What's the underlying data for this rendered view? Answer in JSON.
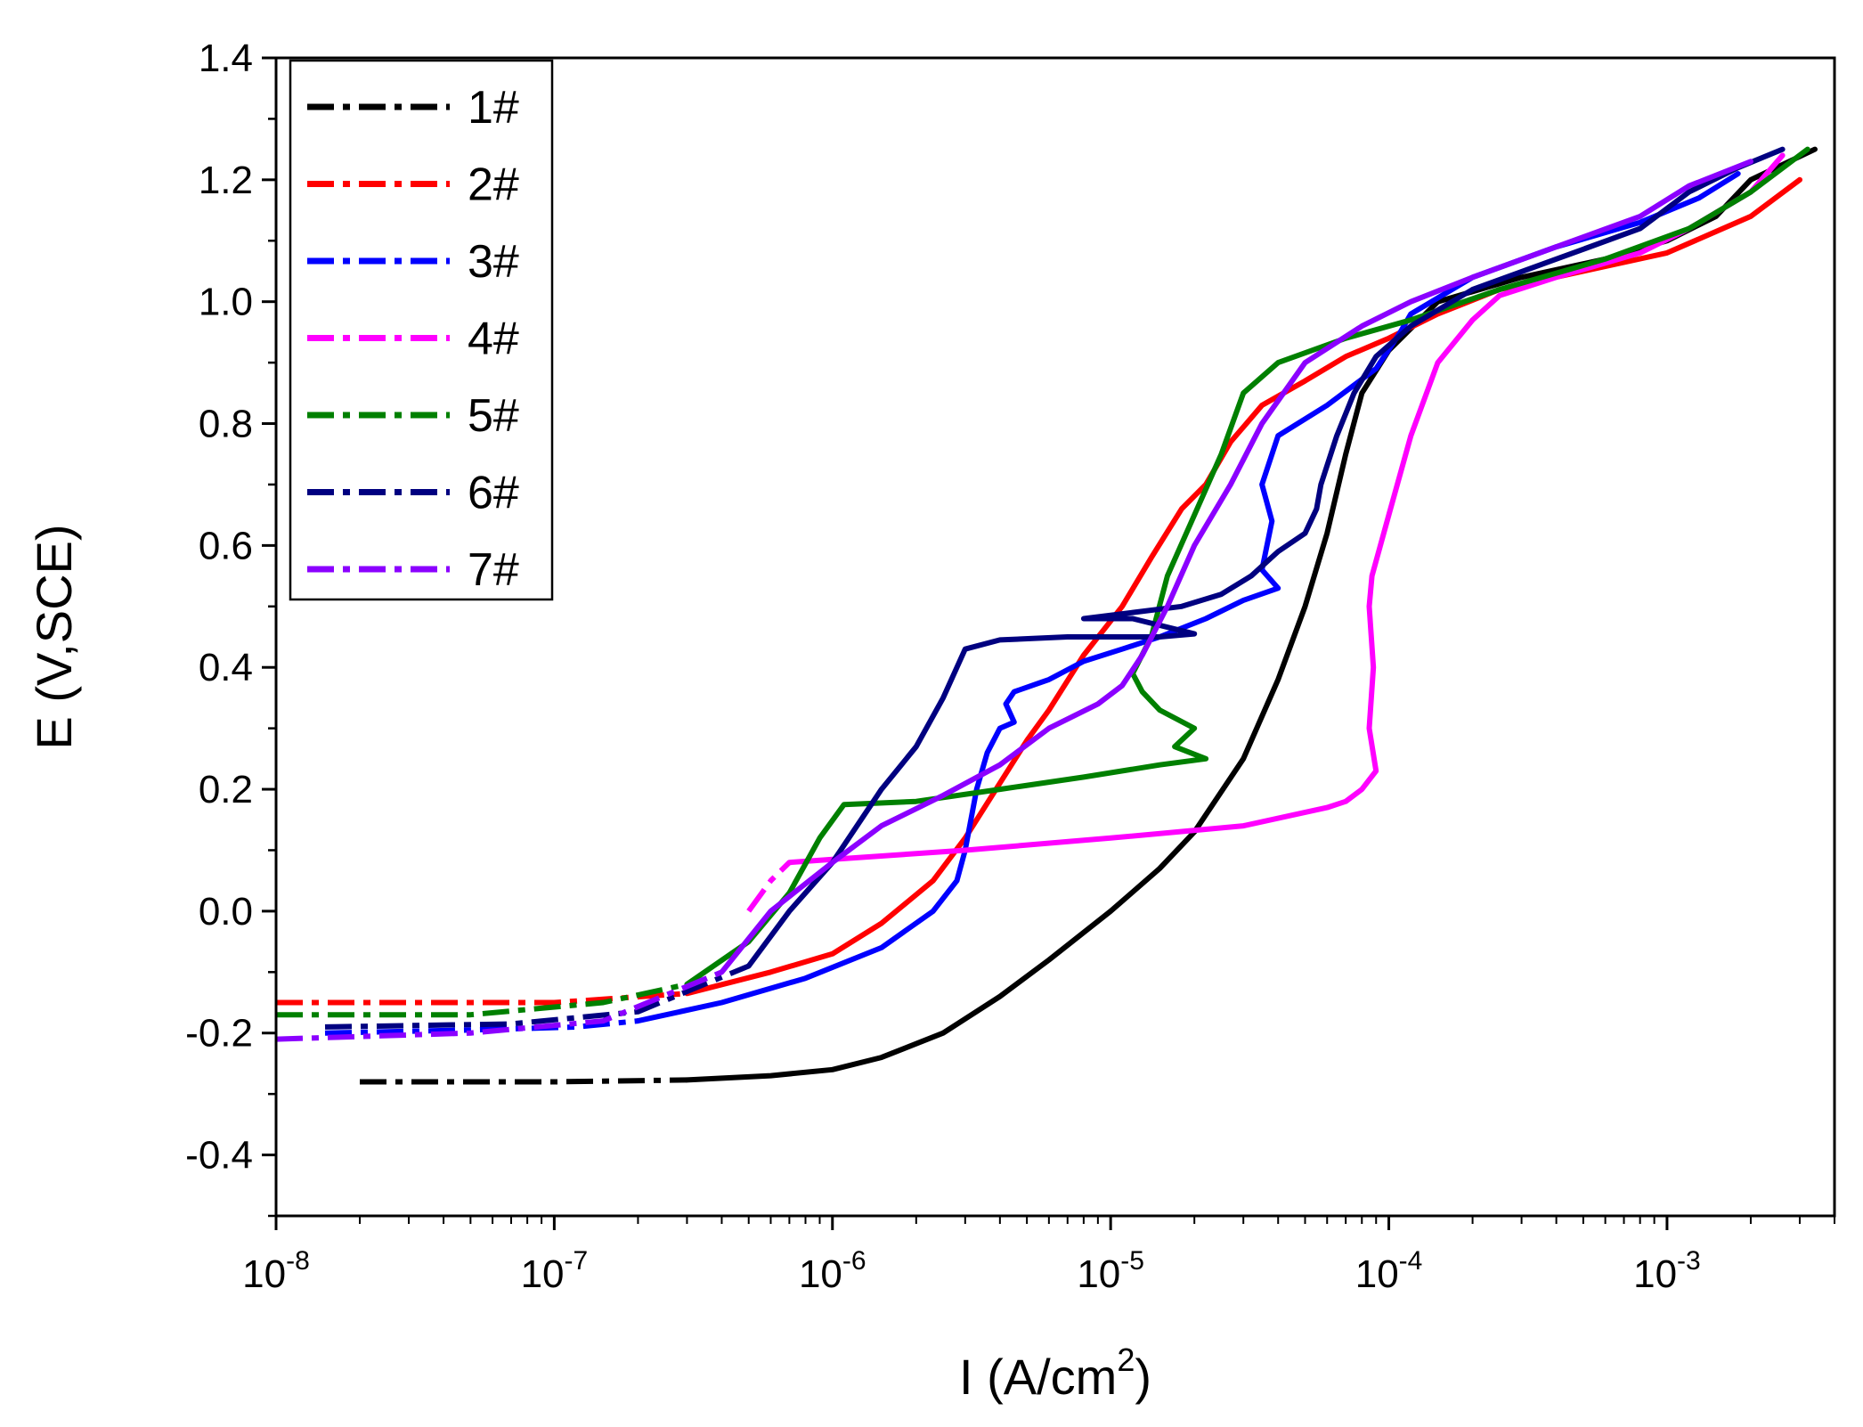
{
  "chart_data": {
    "type": "line",
    "xlabel": "I (A/cm",
    "xlabel_sup": "2",
    "xlabel_close": ")",
    "ylabel": "E (V,SCE)",
    "x_scale": "log",
    "xlim": [
      1e-08,
      0.004
    ],
    "ylim": [
      -0.5,
      1.4
    ],
    "x_ticks": [
      {
        "value": 1e-08,
        "base": "10",
        "exp": "-8"
      },
      {
        "value": 1e-07,
        "base": "10",
        "exp": "-7"
      },
      {
        "value": 1e-06,
        "base": "10",
        "exp": "-6"
      },
      {
        "value": 1e-05,
        "base": "10",
        "exp": "-5"
      },
      {
        "value": 0.0001,
        "base": "10",
        "exp": "-4"
      },
      {
        "value": 0.001,
        "base": "10",
        "exp": "-3"
      }
    ],
    "y_ticks": [
      {
        "value": 1.4,
        "label": "1.4"
      },
      {
        "value": 1.2,
        "label": "1.2"
      },
      {
        "value": 1.0,
        "label": "1.0"
      },
      {
        "value": 0.8,
        "label": "0.8"
      },
      {
        "value": 0.6,
        "label": "0.6"
      },
      {
        "value": 0.4,
        "label": "0.4"
      },
      {
        "value": 0.2,
        "label": "0.2"
      },
      {
        "value": 0.0,
        "label": "0.0"
      },
      {
        "value": -0.2,
        "label": "-0.2"
      },
      {
        "value": -0.4,
        "label": "-0.4"
      }
    ],
    "grid": false,
    "legend": {
      "position": "top-left",
      "style": "dash-dot"
    },
    "series": [
      {
        "name": "1#",
        "color": "#000000",
        "cathodic": [
          [
            2e-08,
            -0.28
          ],
          [
            1e-07,
            -0.28
          ],
          [
            3e-07,
            -0.277
          ]
        ],
        "anodic": [
          [
            3e-07,
            -0.277
          ],
          [
            6e-07,
            -0.27
          ],
          [
            1e-06,
            -0.26
          ],
          [
            1.5e-06,
            -0.24
          ],
          [
            2.5e-06,
            -0.2
          ],
          [
            4e-06,
            -0.14
          ],
          [
            6e-06,
            -0.08
          ],
          [
            1e-05,
            0.0
          ],
          [
            1.5e-05,
            0.07
          ],
          [
            2e-05,
            0.13
          ],
          [
            3e-05,
            0.25
          ],
          [
            4e-05,
            0.38
          ],
          [
            5e-05,
            0.5
          ],
          [
            6e-05,
            0.62
          ],
          [
            7e-05,
            0.75
          ],
          [
            8e-05,
            0.85
          ],
          [
            0.0001,
            0.92
          ],
          [
            0.00015,
            1.0
          ],
          [
            0.0003,
            1.04
          ],
          [
            0.0006,
            1.07
          ],
          [
            0.001,
            1.1
          ],
          [
            0.0015,
            1.14
          ],
          [
            0.002,
            1.2
          ],
          [
            0.0034,
            1.25
          ]
        ]
      },
      {
        "name": "2#",
        "color": "#ff0000",
        "cathodic": [
          [
            1e-08,
            -0.15
          ],
          [
            4e-08,
            -0.15
          ],
          [
            1e-07,
            -0.15
          ],
          [
            3e-07,
            -0.135
          ]
        ],
        "anodic": [
          [
            3e-07,
            -0.135
          ],
          [
            6e-07,
            -0.1
          ],
          [
            1e-06,
            -0.07
          ],
          [
            1.5e-06,
            -0.02
          ],
          [
            2.3e-06,
            0.05
          ],
          [
            3e-06,
            0.12
          ],
          [
            4e-06,
            0.21
          ],
          [
            5e-06,
            0.28
          ],
          [
            6e-06,
            0.33
          ],
          [
            8e-06,
            0.42
          ],
          [
            1.1e-05,
            0.5
          ],
          [
            1.4e-05,
            0.58
          ],
          [
            1.8e-05,
            0.66
          ],
          [
            2.2e-05,
            0.7
          ],
          [
            2.7e-05,
            0.77
          ],
          [
            3.5e-05,
            0.83
          ],
          [
            5e-05,
            0.87
          ],
          [
            7e-05,
            0.91
          ],
          [
            0.0001,
            0.94
          ],
          [
            0.00015,
            0.98
          ],
          [
            0.00025,
            1.02
          ],
          [
            0.0005,
            1.05
          ],
          [
            0.001,
            1.08
          ],
          [
            0.002,
            1.14
          ],
          [
            0.003,
            1.2
          ]
        ]
      },
      {
        "name": "3#",
        "color": "#0000ff",
        "cathodic": [
          [
            1.5e-08,
            -0.2
          ],
          [
            5e-08,
            -0.195
          ],
          [
            1.2e-07,
            -0.19
          ],
          [
            2e-07,
            -0.18
          ]
        ],
        "anodic": [
          [
            2e-07,
            -0.18
          ],
          [
            4e-07,
            -0.15
          ],
          [
            8e-07,
            -0.11
          ],
          [
            1.5e-06,
            -0.06
          ],
          [
            2.3e-06,
            0.0
          ],
          [
            2.8e-06,
            0.05
          ],
          [
            3e-06,
            0.1
          ],
          [
            3.3e-06,
            0.2
          ],
          [
            3.6e-06,
            0.26
          ],
          [
            4e-06,
            0.3
          ],
          [
            4.5e-06,
            0.31
          ],
          [
            4.2e-06,
            0.34
          ],
          [
            4.5e-06,
            0.36
          ],
          [
            6e-06,
            0.38
          ],
          [
            8e-06,
            0.41
          ],
          [
            1.1e-05,
            0.43
          ],
          [
            1.5e-05,
            0.45
          ],
          [
            2.2e-05,
            0.48
          ],
          [
            3e-05,
            0.51
          ],
          [
            4e-05,
            0.53
          ],
          [
            3.5e-05,
            0.56
          ],
          [
            3.8e-05,
            0.64
          ],
          [
            3.5e-05,
            0.7
          ],
          [
            4e-05,
            0.78
          ],
          [
            6e-05,
            0.83
          ],
          [
            9e-05,
            0.89
          ],
          [
            0.00011,
            0.95
          ],
          [
            0.00012,
            0.98
          ],
          [
            0.0002,
            1.04
          ],
          [
            0.0004,
            1.09
          ],
          [
            0.0008,
            1.13
          ],
          [
            0.0013,
            1.17
          ],
          [
            0.0018,
            1.21
          ]
        ]
      },
      {
        "name": "4#",
        "color": "#ff00ff",
        "cathodic": [
          [
            5e-07,
            0.0
          ],
          [
            6e-07,
            0.05
          ],
          [
            7e-07,
            0.08
          ]
        ],
        "anodic": [
          [
            7e-07,
            0.08
          ],
          [
            1e-06,
            0.085
          ],
          [
            3e-06,
            0.1
          ],
          [
            1e-05,
            0.12
          ],
          [
            3e-05,
            0.14
          ],
          [
            6e-05,
            0.17
          ],
          [
            7e-05,
            0.18
          ],
          [
            8e-05,
            0.2
          ],
          [
            9e-05,
            0.23
          ],
          [
            8.5e-05,
            0.3
          ],
          [
            8.8e-05,
            0.4
          ],
          [
            8.5e-05,
            0.5
          ],
          [
            8.7e-05,
            0.55
          ],
          [
            0.0001,
            0.65
          ],
          [
            0.00012,
            0.78
          ],
          [
            0.00015,
            0.9
          ],
          [
            0.0002,
            0.97
          ],
          [
            0.00025,
            1.01
          ],
          [
            0.0004,
            1.04
          ],
          [
            0.0008,
            1.08
          ],
          [
            0.0012,
            1.12
          ],
          [
            0.002,
            1.18
          ],
          [
            0.0026,
            1.24
          ]
        ]
      },
      {
        "name": "5#",
        "color": "#008000",
        "cathodic": [
          [
            1e-08,
            -0.17
          ],
          [
            5e-08,
            -0.17
          ],
          [
            1.5e-07,
            -0.15
          ],
          [
            3e-07,
            -0.12
          ]
        ],
        "anodic": [
          [
            3e-07,
            -0.12
          ],
          [
            5e-07,
            -0.05
          ],
          [
            7e-07,
            0.03
          ],
          [
            9e-07,
            0.12
          ],
          [
            1.1e-06,
            0.175
          ],
          [
            2e-06,
            0.18
          ],
          [
            4e-06,
            0.2
          ],
          [
            8e-06,
            0.22
          ],
          [
            1.5e-05,
            0.24
          ],
          [
            2.2e-05,
            0.25
          ],
          [
            1.7e-05,
            0.27
          ],
          [
            2e-05,
            0.3
          ],
          [
            1.5e-05,
            0.33
          ],
          [
            1.3e-05,
            0.36
          ],
          [
            1.2e-05,
            0.39
          ],
          [
            1.4e-05,
            0.45
          ],
          [
            1.6e-05,
            0.55
          ],
          [
            2e-05,
            0.65
          ],
          [
            2.5e-05,
            0.75
          ],
          [
            3e-05,
            0.85
          ],
          [
            4e-05,
            0.9
          ],
          [
            7e-05,
            0.94
          ],
          [
            0.00012,
            0.97
          ],
          [
            0.00025,
            1.02
          ],
          [
            0.0006,
            1.07
          ],
          [
            0.0012,
            1.12
          ],
          [
            0.002,
            1.18
          ],
          [
            0.0032,
            1.25
          ]
        ]
      },
      {
        "name": "6#",
        "color": "#000080",
        "cathodic": [
          [
            1.5e-08,
            -0.19
          ],
          [
            7e-08,
            -0.185
          ],
          [
            2e-07,
            -0.165
          ],
          [
            5e-07,
            -0.09
          ]
        ],
        "anodic": [
          [
            5e-07,
            -0.09
          ],
          [
            7e-07,
            0.0
          ],
          [
            1e-06,
            0.08
          ],
          [
            1.5e-06,
            0.2
          ],
          [
            2e-06,
            0.27
          ],
          [
            2.5e-06,
            0.35
          ],
          [
            3e-06,
            0.43
          ],
          [
            4e-06,
            0.445
          ],
          [
            7e-06,
            0.45
          ],
          [
            1.5e-05,
            0.45
          ],
          [
            2e-05,
            0.455
          ],
          [
            1.2e-05,
            0.48
          ],
          [
            8e-06,
            0.48
          ],
          [
            1.2e-05,
            0.49
          ],
          [
            1.8e-05,
            0.5
          ],
          [
            2.5e-05,
            0.52
          ],
          [
            3.2e-05,
            0.55
          ],
          [
            4e-05,
            0.59
          ],
          [
            5e-05,
            0.62
          ],
          [
            5.5e-05,
            0.66
          ],
          [
            5.7e-05,
            0.7
          ],
          [
            6.5e-05,
            0.78
          ],
          [
            7.5e-05,
            0.85
          ],
          [
            9e-05,
            0.91
          ],
          [
            0.00012,
            0.96
          ],
          [
            0.0002,
            1.02
          ],
          [
            0.0004,
            1.07
          ],
          [
            0.0008,
            1.12
          ],
          [
            0.0012,
            1.18
          ],
          [
            0.0018,
            1.22
          ],
          [
            0.0026,
            1.25
          ]
        ]
      },
      {
        "name": "7#",
        "color": "#8b00ff",
        "cathodic": [
          [
            1e-08,
            -0.21
          ],
          [
            5e-08,
            -0.2
          ],
          [
            1.5e-07,
            -0.18
          ],
          [
            4e-07,
            -0.1
          ]
        ],
        "anodic": [
          [
            4e-07,
            -0.1
          ],
          [
            6e-07,
            0.0
          ],
          [
            1e-06,
            0.08
          ],
          [
            1.5e-06,
            0.14
          ],
          [
            2.5e-06,
            0.19
          ],
          [
            4e-06,
            0.24
          ],
          [
            6e-06,
            0.3
          ],
          [
            9e-06,
            0.34
          ],
          [
            1.1e-05,
            0.37
          ],
          [
            1.3e-05,
            0.42
          ],
          [
            1.6e-05,
            0.5
          ],
          [
            2e-05,
            0.6
          ],
          [
            2.7e-05,
            0.7
          ],
          [
            3.5e-05,
            0.8
          ],
          [
            5e-05,
            0.9
          ],
          [
            8e-05,
            0.96
          ],
          [
            0.00012,
            1.0
          ],
          [
            0.0002,
            1.04
          ],
          [
            0.0004,
            1.09
          ],
          [
            0.0008,
            1.14
          ],
          [
            0.0012,
            1.19
          ],
          [
            0.002,
            1.23
          ]
        ]
      }
    ]
  }
}
